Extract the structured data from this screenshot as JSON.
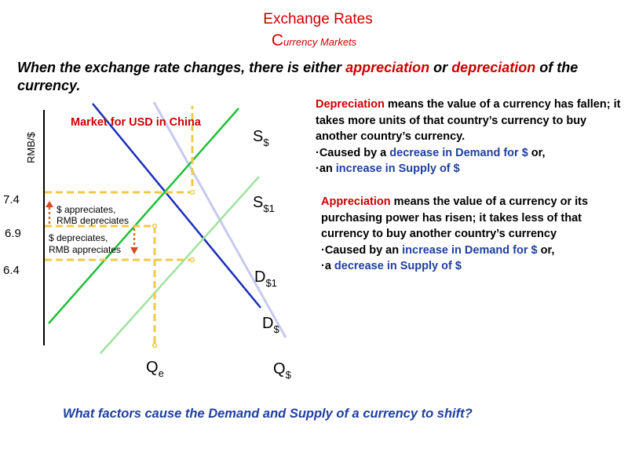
{
  "title": "Exchange Rates",
  "subtitle_first": "C",
  "subtitle_rest": "urrency Markets",
  "intro": {
    "part1": "When the exchange rate changes, there is either ",
    "appreciation": "appreciation",
    "or": " or ",
    "depreciation": "depreciation",
    "part2": " of the currency."
  },
  "diagram": {
    "y_axis_label": "RMB/$",
    "market_title": "Market for USD in China",
    "rate_ticks": [
      "7.4",
      "6.9",
      "6.4"
    ],
    "supply_label": "S",
    "supply_sub": "$",
    "supply1_label": "S",
    "supply1_sub": "$1",
    "demand1_label": "D",
    "demand1_sub": "$1",
    "demand_label": "D",
    "demand_sub": "$",
    "qe_label": "Q",
    "qe_sub": "e",
    "q_label": "Q",
    "q_sub": "$",
    "up_note_line1": "$ appreciates,",
    "up_note_line2": "RMB depreciates",
    "down_note_line1": "$ depreciates,",
    "down_note_line2": "RMB appreciates",
    "colors": {
      "demand": "#1a2eb8",
      "supply": "#1fbf3a",
      "supply_shift": "#9fe29f",
      "supply_faded": "#c7c9ee",
      "guide": "#f0c84a",
      "arrow_up": "#d9481e",
      "arrow_dot": "#c9702a"
    }
  },
  "depreciation": {
    "term": "Depreciation",
    "text": " means the value of a currency has fallen; it takes more units of that country’s currency to buy another country’s currency.",
    "cause1_pre": "·Caused by a ",
    "cause1": "decrease in Demand for $",
    "cause1_post": " or,",
    "cause2_pre": "·an ",
    "cause2": "increase in Supply of $"
  },
  "appreciation": {
    "term": "Appreciation",
    "text": " means the value of a currency or its purchasing power has risen; it takes less of that currency to buy another country’s currency",
    "cause1_pre": "·Caused by an ",
    "cause1": "increase in Demand for $",
    "cause1_post": " or,",
    "cause2_pre": "·a ",
    "cause2": "decrease in Supply of $"
  },
  "question": "What factors cause the Demand and Supply of a currency to shift?"
}
